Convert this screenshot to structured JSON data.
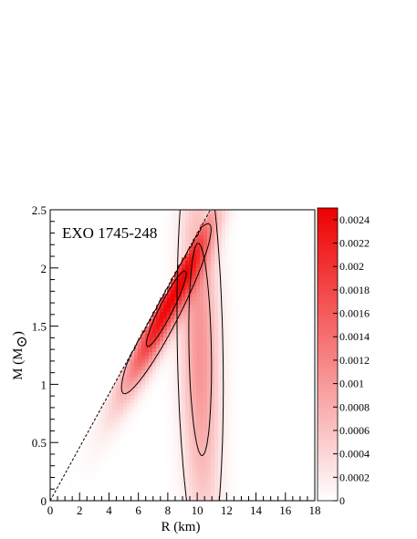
{
  "chart_data": {
    "type": "heatmap",
    "annotation": "EXO 1745-248",
    "xlabel": "R (km)",
    "ylabel": {
      "main": "M (M",
      "sub": "⊙",
      "close": ")"
    },
    "xlim": [
      0,
      18
    ],
    "ylim": [
      0,
      2.5
    ],
    "x_ticks": [
      0,
      2,
      4,
      6,
      8,
      10,
      12,
      14,
      16,
      18
    ],
    "x_tick_labels": [
      "0",
      "2",
      "4",
      "6",
      "8",
      "10",
      "12",
      "14",
      "16",
      "18"
    ],
    "y_ticks": [
      0,
      0.5,
      1,
      1.5,
      2,
      2.5
    ],
    "y_tick_labels": [
      "0",
      "0.5",
      "1",
      "1.5",
      "2",
      "2.5"
    ],
    "grid": false,
    "colorbar": {
      "min": 0,
      "max": 0.0025,
      "ticks": [
        0,
        0.0002,
        0.0004,
        0.0006,
        0.0008,
        0.001,
        0.0012,
        0.0014,
        0.0016,
        0.0018,
        0.002,
        0.0022,
        0.0024
      ],
      "tick_labels": [
        "0",
        "0.0002",
        "0.0004",
        "0.0006",
        "0.0008",
        "0.001",
        "0.0012",
        "0.0014",
        "0.0016",
        "0.0018",
        "0.002",
        "0.0022",
        "0.0024"
      ],
      "color_low": "#ffffff",
      "color_high": "#ee0000"
    },
    "limit_line": {
      "style": "dashed",
      "points": [
        [
          0,
          0
        ],
        [
          10.9,
          2.5
        ]
      ]
    },
    "lobes": [
      {
        "name": "upper",
        "center": [
          7.9,
          1.65
        ],
        "sigma_major": [
          2.0,
          0.45
        ],
        "sigma_minor": 0.17,
        "peak": 0.0024,
        "contours": [
          0.0019,
          0.00075
        ],
        "clip_boundary": true
      },
      {
        "name": "lower",
        "center": [
          10.2,
          1.3
        ],
        "sigma_major": [
          0.42,
          -1.0
        ],
        "sigma_minor": 0.85,
        "peak": 0.00105,
        "contours": [
          0.00072,
          0.00022
        ],
        "clip_boundary": false
      }
    ],
    "colors": {
      "axis": "#000000",
      "contour": "#000000",
      "line": "#000000"
    }
  }
}
